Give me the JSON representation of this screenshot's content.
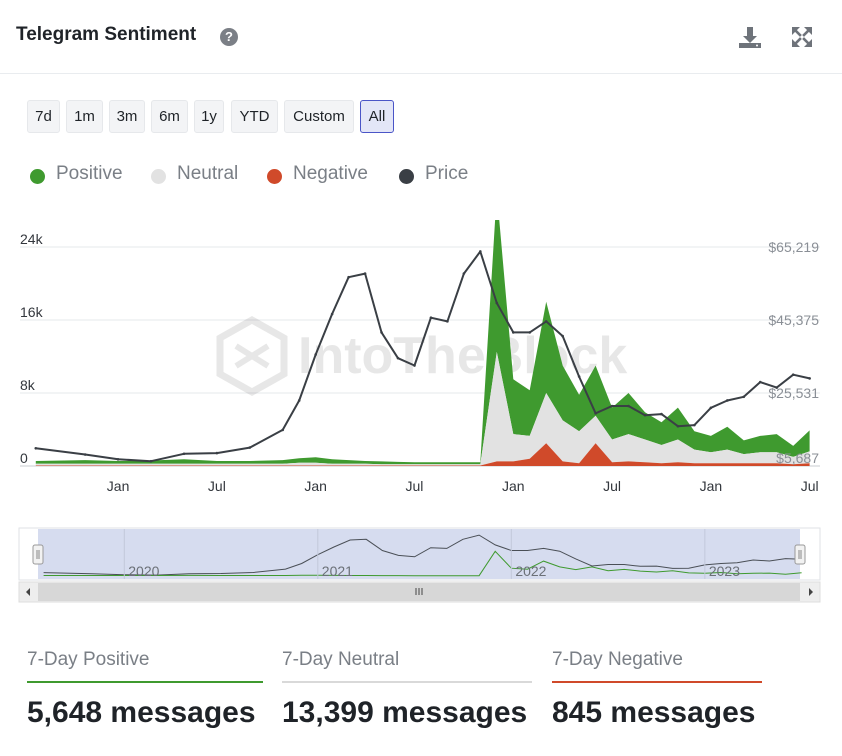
{
  "header": {
    "title": "Telegram Sentiment",
    "help_glyph": "?",
    "icons": [
      "download-icon",
      "expand-icon"
    ]
  },
  "ranges": {
    "buttons": [
      "7d",
      "1m",
      "3m",
      "6m",
      "1y",
      "YTD",
      "Custom",
      "All"
    ],
    "selected": "All"
  },
  "legend": [
    {
      "name": "Positive",
      "color": "#3f9a2f"
    },
    {
      "name": "Neutral",
      "color": "#e2e2e2"
    },
    {
      "name": "Negative",
      "color": "#d04a2a"
    },
    {
      "name": "Price",
      "color": "#3a3f45"
    }
  ],
  "watermark": "IntoTheBlock",
  "chart_data": {
    "type": "area",
    "title": "Telegram Sentiment",
    "x_start": "2019-08",
    "x_end": "2023-07",
    "x_ticks": [
      {
        "label": "Jan",
        "date": "2020-01"
      },
      {
        "label": "Jul",
        "date": "2020-07"
      },
      {
        "label": "Jan",
        "date": "2021-01"
      },
      {
        "label": "Jul",
        "date": "2021-07"
      },
      {
        "label": "Jan",
        "date": "2022-01"
      },
      {
        "label": "Jul",
        "date": "2022-07"
      },
      {
        "label": "Jan",
        "date": "2023-01"
      },
      {
        "label": "Jul",
        "date": "2023-07"
      }
    ],
    "y_left": {
      "ticks": [
        "0",
        "8k",
        "16k",
        "24k"
      ],
      "ylim": [
        0,
        24000
      ]
    },
    "y_right": {
      "ticks": [
        "$5,687",
        "$25,531",
        "$45,375",
        "$65,219"
      ],
      "ylim": [
        5687,
        65219
      ]
    },
    "x": [
      "2019-08",
      "2019-11",
      "2020-01",
      "2020-03",
      "2020-05",
      "2020-07",
      "2020-09",
      "2020-11",
      "2020-12",
      "2021-01",
      "2021-02",
      "2021-03",
      "2021-04",
      "2021-05",
      "2021-06",
      "2021-07",
      "2021-08",
      "2021-09",
      "2021-10",
      "2021-11",
      "2021-12",
      "2022-01",
      "2022-02",
      "2022-03",
      "2022-04",
      "2022-05",
      "2022-06",
      "2022-07",
      "2022-08",
      "2022-09",
      "2022-10",
      "2022-11",
      "2022-12",
      "2023-01",
      "2023-02",
      "2023-03",
      "2023-04",
      "2023-05",
      "2023-06",
      "2023-07"
    ],
    "series": [
      {
        "name": "Price",
        "axis": "right",
        "values": [
          10500,
          8800,
          7500,
          7000,
          9000,
          9200,
          10700,
          15500,
          23500,
          36000,
          47000,
          57000,
          58000,
          42000,
          35000,
          33000,
          46000,
          45000,
          58000,
          64000,
          50000,
          42000,
          42000,
          45000,
          41000,
          30000,
          20000,
          22000,
          22000,
          19500,
          19800,
          16500,
          16800,
          21500,
          23500,
          24500,
          28500,
          27000,
          30500,
          29500
        ]
      },
      {
        "name": "Positive",
        "axis": "left",
        "values": [
          300,
          400,
          300,
          350,
          500,
          300,
          300,
          400,
          500,
          600,
          500,
          400,
          300,
          300,
          250,
          200,
          200,
          200,
          200,
          200,
          17500,
          6000,
          5000,
          10000,
          6000,
          4000,
          5500,
          3500,
          4500,
          3000,
          2500,
          3500,
          2000,
          1800,
          2500,
          1500,
          1800,
          2000,
          1200,
          2300
        ]
      },
      {
        "name": "Neutral",
        "axis": "left",
        "values": [
          200,
          200,
          200,
          200,
          200,
          200,
          200,
          200,
          300,
          300,
          200,
          200,
          200,
          150,
          150,
          150,
          150,
          150,
          150,
          150,
          12000,
          3000,
          2500,
          5500,
          4500,
          3500,
          3000,
          2500,
          3000,
          2500,
          2000,
          2500,
          1500,
          1200,
          1500,
          1000,
          1200,
          1200,
          800,
          1300
        ]
      },
      {
        "name": "Negative",
        "axis": "left",
        "values": [
          50,
          50,
          50,
          50,
          50,
          50,
          50,
          50,
          50,
          50,
          50,
          50,
          50,
          50,
          50,
          50,
          50,
          50,
          50,
          50,
          500,
          500,
          800,
          2500,
          500,
          300,
          2500,
          400,
          500,
          400,
          300,
          400,
          300,
          300,
          300,
          300,
          300,
          300,
          200,
          300
        ]
      }
    ],
    "navigator": {
      "year_labels": [
        "2020",
        "2021",
        "2022",
        "2023"
      ]
    },
    "grid": true,
    "legend_position": "top-left"
  },
  "stats": [
    {
      "label": "7-Day Positive",
      "value": "5,648 messages",
      "color": "#3f9a2f"
    },
    {
      "label": "7-Day Neutral",
      "value": "13,399 messages",
      "color": "#d9d9d9"
    },
    {
      "label": "7-Day Negative",
      "value": "845 messages",
      "color": "#d04a2a"
    }
  ]
}
